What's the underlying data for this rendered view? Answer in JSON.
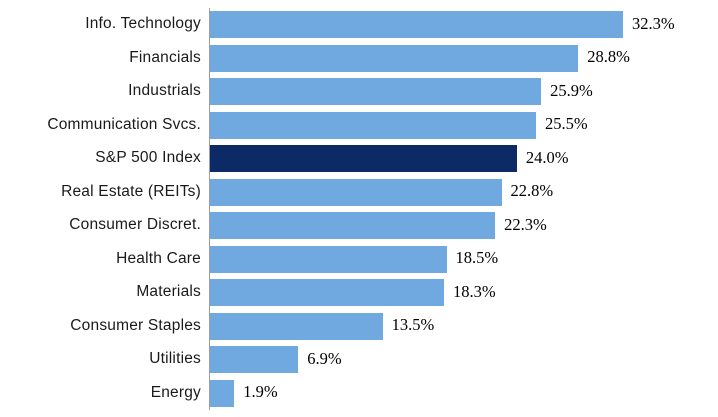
{
  "chart_data": {
    "type": "bar",
    "orientation": "horizontal",
    "title": "",
    "xlabel": "",
    "ylabel": "",
    "categories": [
      "Info. Technology",
      "Financials",
      "Industrials",
      "Communication Svcs.",
      "S&P 500 Index",
      "Real Estate (REITs)",
      "Consumer Discret.",
      "Health Care",
      "Materials",
      "Consumer Staples",
      "Utilities",
      "Energy"
    ],
    "values": [
      32.3,
      28.8,
      25.9,
      25.5,
      24.0,
      22.8,
      22.3,
      18.5,
      18.3,
      13.5,
      6.9,
      1.9
    ],
    "value_labels": [
      "32.3%",
      "28.8%",
      "25.9%",
      "25.5%",
      "24.0%",
      "22.8%",
      "22.3%",
      "18.5%",
      "18.3%",
      "13.5%",
      "6.9%",
      "1.9%"
    ],
    "highlight_category": "S&P 500 Index",
    "highlight_index": 4,
    "legend": [],
    "grid": false,
    "axis_line": "left-vertical",
    "colors": {
      "bar": "#6FA9DF",
      "highlight_bar": "#0B2A66",
      "axis_line": "#9E9E9E",
      "category_text": "#1A1A1A",
      "value_text": "#000000",
      "background": "#FFFFFF"
    },
    "xlim": [
      0,
      39.2
    ]
  }
}
